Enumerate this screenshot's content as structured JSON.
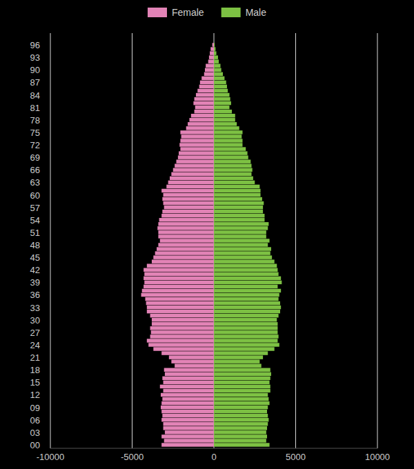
{
  "chart_data": {
    "type": "bar",
    "orientation": "horizontal",
    "legend": "top",
    "grid": true,
    "categories": [
      "00",
      null,
      null,
      "03",
      null,
      null,
      "06",
      null,
      null,
      "09",
      null,
      null,
      "12",
      null,
      null,
      "15",
      null,
      null,
      "18",
      null,
      null,
      "21",
      null,
      null,
      "24",
      null,
      null,
      "27",
      null,
      null,
      "30",
      null,
      null,
      "33",
      null,
      null,
      "36",
      null,
      null,
      "39",
      null,
      null,
      "42",
      null,
      null,
      "45",
      null,
      null,
      "48",
      null,
      null,
      "51",
      null,
      null,
      "54",
      null,
      null,
      "57",
      null,
      null,
      "60",
      null,
      null,
      "63",
      null,
      null,
      "66",
      null,
      null,
      "69",
      null,
      null,
      "72",
      null,
      null,
      "75",
      null,
      null,
      "78",
      null,
      null,
      "81",
      null,
      null,
      "84",
      null,
      null,
      "87",
      null,
      null,
      "90",
      null,
      null,
      "93",
      null,
      null,
      "96"
    ],
    "series": [
      {
        "name": "Female",
        "color": "#e283b6",
        "values": [
          -3200,
          -3050,
          -3200,
          -3000,
          -3100,
          -3100,
          -3200,
          -3150,
          -3200,
          -3250,
          -3200,
          -3150,
          -3250,
          -3100,
          -3300,
          -3100,
          -3150,
          -3000,
          -3050,
          -2400,
          -2600,
          -2750,
          -3200,
          -3700,
          -4000,
          -4100,
          -3900,
          -3850,
          -3900,
          -3800,
          -3800,
          -3900,
          -4100,
          -4100,
          -4150,
          -4200,
          -4450,
          -4400,
          -4300,
          -4250,
          -4300,
          -4250,
          -4300,
          -4100,
          -3800,
          -3700,
          -3600,
          -3500,
          -3400,
          -3300,
          -3400,
          -3400,
          -3450,
          -3400,
          -3350,
          -3200,
          -3150,
          -3050,
          -3100,
          -3150,
          -3100,
          -3200,
          -2900,
          -2800,
          -2700,
          -2600,
          -2500,
          -2400,
          -2300,
          -2200,
          -2150,
          -2050,
          -2100,
          -2050,
          -2000,
          -2050,
          -1700,
          -1600,
          -1500,
          -1400,
          -1200,
          -1150,
          -1250,
          -1200,
          -1100,
          -1000,
          -900,
          -850,
          -750,
          -600,
          -550,
          -500,
          -350,
          -300,
          -250,
          -200,
          -100
        ]
      },
      {
        "name": "Male",
        "color": "#7dc143",
        "values": [
          3400,
          3200,
          3250,
          3200,
          3250,
          3300,
          3350,
          3300,
          3250,
          3300,
          3400,
          3350,
          3300,
          3450,
          3450,
          3400,
          3450,
          3500,
          3450,
          2900,
          2800,
          3000,
          3300,
          3700,
          4000,
          3900,
          3950,
          3900,
          3900,
          3900,
          3850,
          3950,
          4050,
          4100,
          4050,
          3950,
          4000,
          4100,
          3900,
          4150,
          4100,
          3950,
          3900,
          3850,
          3700,
          3550,
          3450,
          3500,
          3300,
          3400,
          3200,
          3200,
          3300,
          3350,
          3100,
          3100,
          3000,
          3000,
          3050,
          2950,
          2850,
          2850,
          2800,
          2500,
          2400,
          2300,
          2350,
          2300,
          2250,
          2100,
          2050,
          1950,
          1750,
          1750,
          1700,
          1750,
          1550,
          1400,
          1300,
          1300,
          1100,
          950,
          1050,
          1000,
          950,
          850,
          800,
          750,
          650,
          550,
          450,
          400,
          300,
          250,
          150,
          100,
          50
        ]
      }
    ],
    "xlim": [
      -10000,
      10000
    ],
    "xticks": [
      -10000,
      -5000,
      0,
      5000,
      10000
    ]
  }
}
